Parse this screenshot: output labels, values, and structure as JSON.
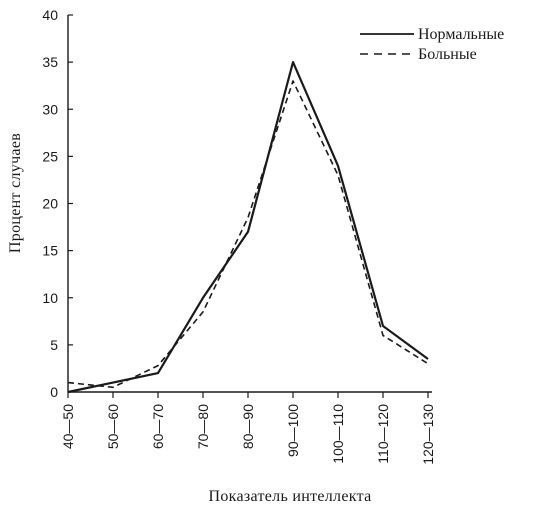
{
  "chart_data": {
    "type": "line",
    "title": "",
    "xlabel": "Показатель интеллекта",
    "ylabel": "Процент случаев",
    "categories": [
      "40—50",
      "50—60",
      "60—70",
      "70—80",
      "80—90",
      "90—100",
      "100—110",
      "110—120",
      "120—130"
    ],
    "ylim": [
      0,
      40
    ],
    "yticks": [
      0,
      5,
      10,
      15,
      20,
      25,
      30,
      35,
      40
    ],
    "grid": false,
    "legend": "top-right",
    "series": [
      {
        "name": "Нормальные",
        "style": "solid",
        "color": "#1a1a1a",
        "values": [
          0,
          1,
          2,
          10,
          17,
          35,
          24,
          7,
          3.5
        ]
      },
      {
        "name": "Больные",
        "style": "dashed",
        "color": "#1a1a1a",
        "values": [
          1,
          0.5,
          2.8,
          8.5,
          18.5,
          33,
          23,
          6,
          3
        ]
      }
    ]
  }
}
